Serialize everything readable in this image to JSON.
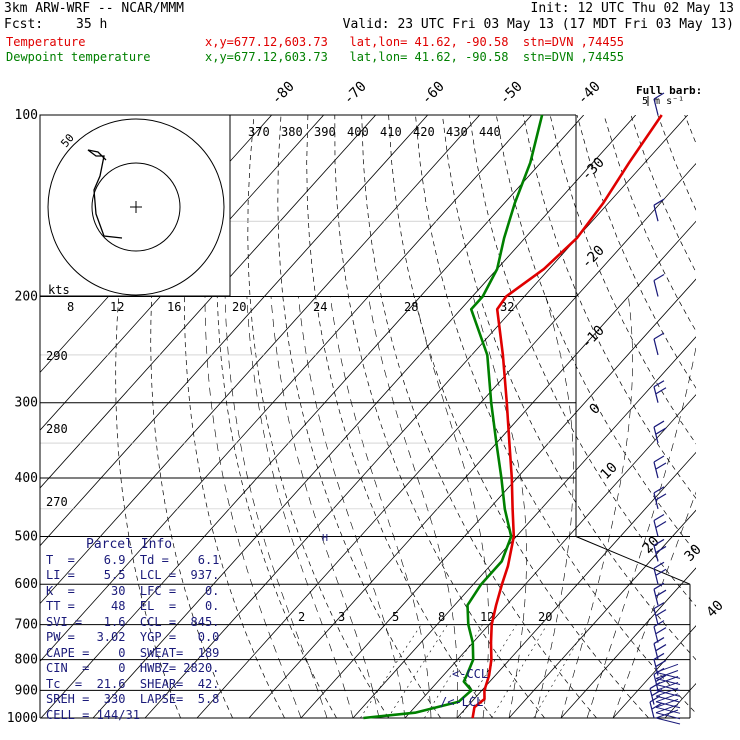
{
  "header": {
    "model": "3km ARW-WRF -- NCAR/MMM",
    "init": "Init: 12 UTC Thu 02 May 13",
    "fcst_label": "Fcst:",
    "fcst_value": "35 h",
    "valid": "Valid: 23 UTC Fri 03 May 13 (17 MDT Fri 03 May 13)",
    "temp_label": "Temperature",
    "temp_info": "x,y=677.12,603.73   lat,lon= 41.62, -90.58  stn=DVN ,74455",
    "dew_label": "Dewpoint temperature",
    "dew_info": "x,y=677.12,603.73   lat,lon= 41.62, -90.58  stn=DVN ,74455"
  },
  "barb_legend": {
    "line1": "Full barb:",
    "line2": "5 m s⁻¹"
  },
  "hodograph": {
    "ring_label": "50",
    "kts_label": "kts",
    "speed_labels": [
      "8",
      "12",
      "16",
      "20",
      "24",
      "28",
      "32"
    ]
  },
  "parcel_info": {
    "title": "Parcel Info",
    "rows": [
      "T  =    6.9  Td =    6.1",
      "LI =    5.5  LCL =  937.",
      "K  =     30  LFC =    0.",
      "TT =     48  EL  =    0.",
      "SVI =   1.6  CCL =  845.",
      "PW =   3.02  YGP =   0.0",
      "CAPE =    0  SWEAT=  189",
      "CIN  =    0  HWBZ= 2820.",
      "Tc  =  21.6  SHEAR=  42.",
      "SREH =  330  LAPSE=  5.8",
      "CELL = 144/31"
    ]
  },
  "annotations": {
    "ccl": "<-CCL",
    "lcl": "/<-LCL",
    "marker": "H"
  },
  "colors": {
    "temperature": "#e00000",
    "dewpoint": "#008000",
    "isobar": "#000000",
    "barb": "#1a1a7a"
  },
  "chart_data": {
    "type": "line",
    "title": "",
    "xlabel": "",
    "ylabel": "",
    "y_scale": "log pressure (hPa)",
    "pressure_ticks": [
      100,
      200,
      300,
      400,
      500,
      600,
      700,
      800,
      900,
      1000
    ],
    "pressure_tick_labels": [
      "100",
      "200",
      "300",
      "400",
      "500",
      "600",
      "700",
      "800",
      "900",
      "1000"
    ],
    "isotherm_labels": [
      "-80",
      "-70",
      "-60",
      "-50",
      "-40",
      "-30",
      "-20",
      "-10",
      "0",
      "10",
      "20",
      "30",
      "40"
    ],
    "theta_labels": [
      "370",
      "380",
      "390",
      "400",
      "410",
      "420",
      "430",
      "440"
    ],
    "mixing_ratio_labels": [
      "2",
      "3",
      "5",
      "8",
      "12",
      "20"
    ],
    "dry_adiabat_labels": [
      "290",
      "280",
      "270"
    ],
    "series": [
      {
        "name": "Temperature",
        "points": [
          [
            1000,
            13
          ],
          [
            960,
            11.5
          ],
          [
            930,
            12
          ],
          [
            900,
            10.5
          ],
          [
            850,
            8.8
          ],
          [
            800,
            6.5
          ],
          [
            750,
            3.5
          ],
          [
            700,
            0.5
          ],
          [
            650,
            -2
          ],
          [
            600,
            -4.5
          ],
          [
            560,
            -6.5
          ],
          [
            500,
            -10.5
          ],
          [
            450,
            -15.5
          ],
          [
            400,
            -21
          ],
          [
            350,
            -27.5
          ],
          [
            300,
            -35
          ],
          [
            250,
            -44
          ],
          [
            210,
            -53
          ],
          [
            200,
            -53.5
          ],
          [
            180,
            -51
          ],
          [
            160,
            -50
          ],
          [
            140,
            -51
          ],
          [
            120,
            -53
          ],
          [
            100,
            -55
          ]
        ]
      },
      {
        "name": "Dewpoint temperature",
        "points": [
          [
            1000,
            -8
          ],
          [
            980,
            1
          ],
          [
            940,
            7.5
          ],
          [
            900,
            8
          ],
          [
            870,
            5
          ],
          [
            850,
            4.5
          ],
          [
            800,
            3
          ],
          [
            750,
            0
          ],
          [
            700,
            -4
          ],
          [
            650,
            -7.5
          ],
          [
            600,
            -8.5
          ],
          [
            550,
            -8.5
          ],
          [
            500,
            -11
          ],
          [
            450,
            -17
          ],
          [
            400,
            -23
          ],
          [
            350,
            -30
          ],
          [
            300,
            -38
          ],
          [
            250,
            -47
          ],
          [
            210,
            -58
          ],
          [
            200,
            -58
          ],
          [
            180,
            -60
          ],
          [
            160,
            -64
          ],
          [
            140,
            -68
          ],
          [
            120,
            -72
          ],
          [
            100,
            -78
          ]
        ]
      }
    ],
    "wind_barbs": [
      100,
      150,
      200,
      250,
      300,
      350,
      400,
      450,
      500,
      550,
      600,
      650,
      700,
      750,
      800,
      850,
      900,
      950,
      1000
    ]
  }
}
